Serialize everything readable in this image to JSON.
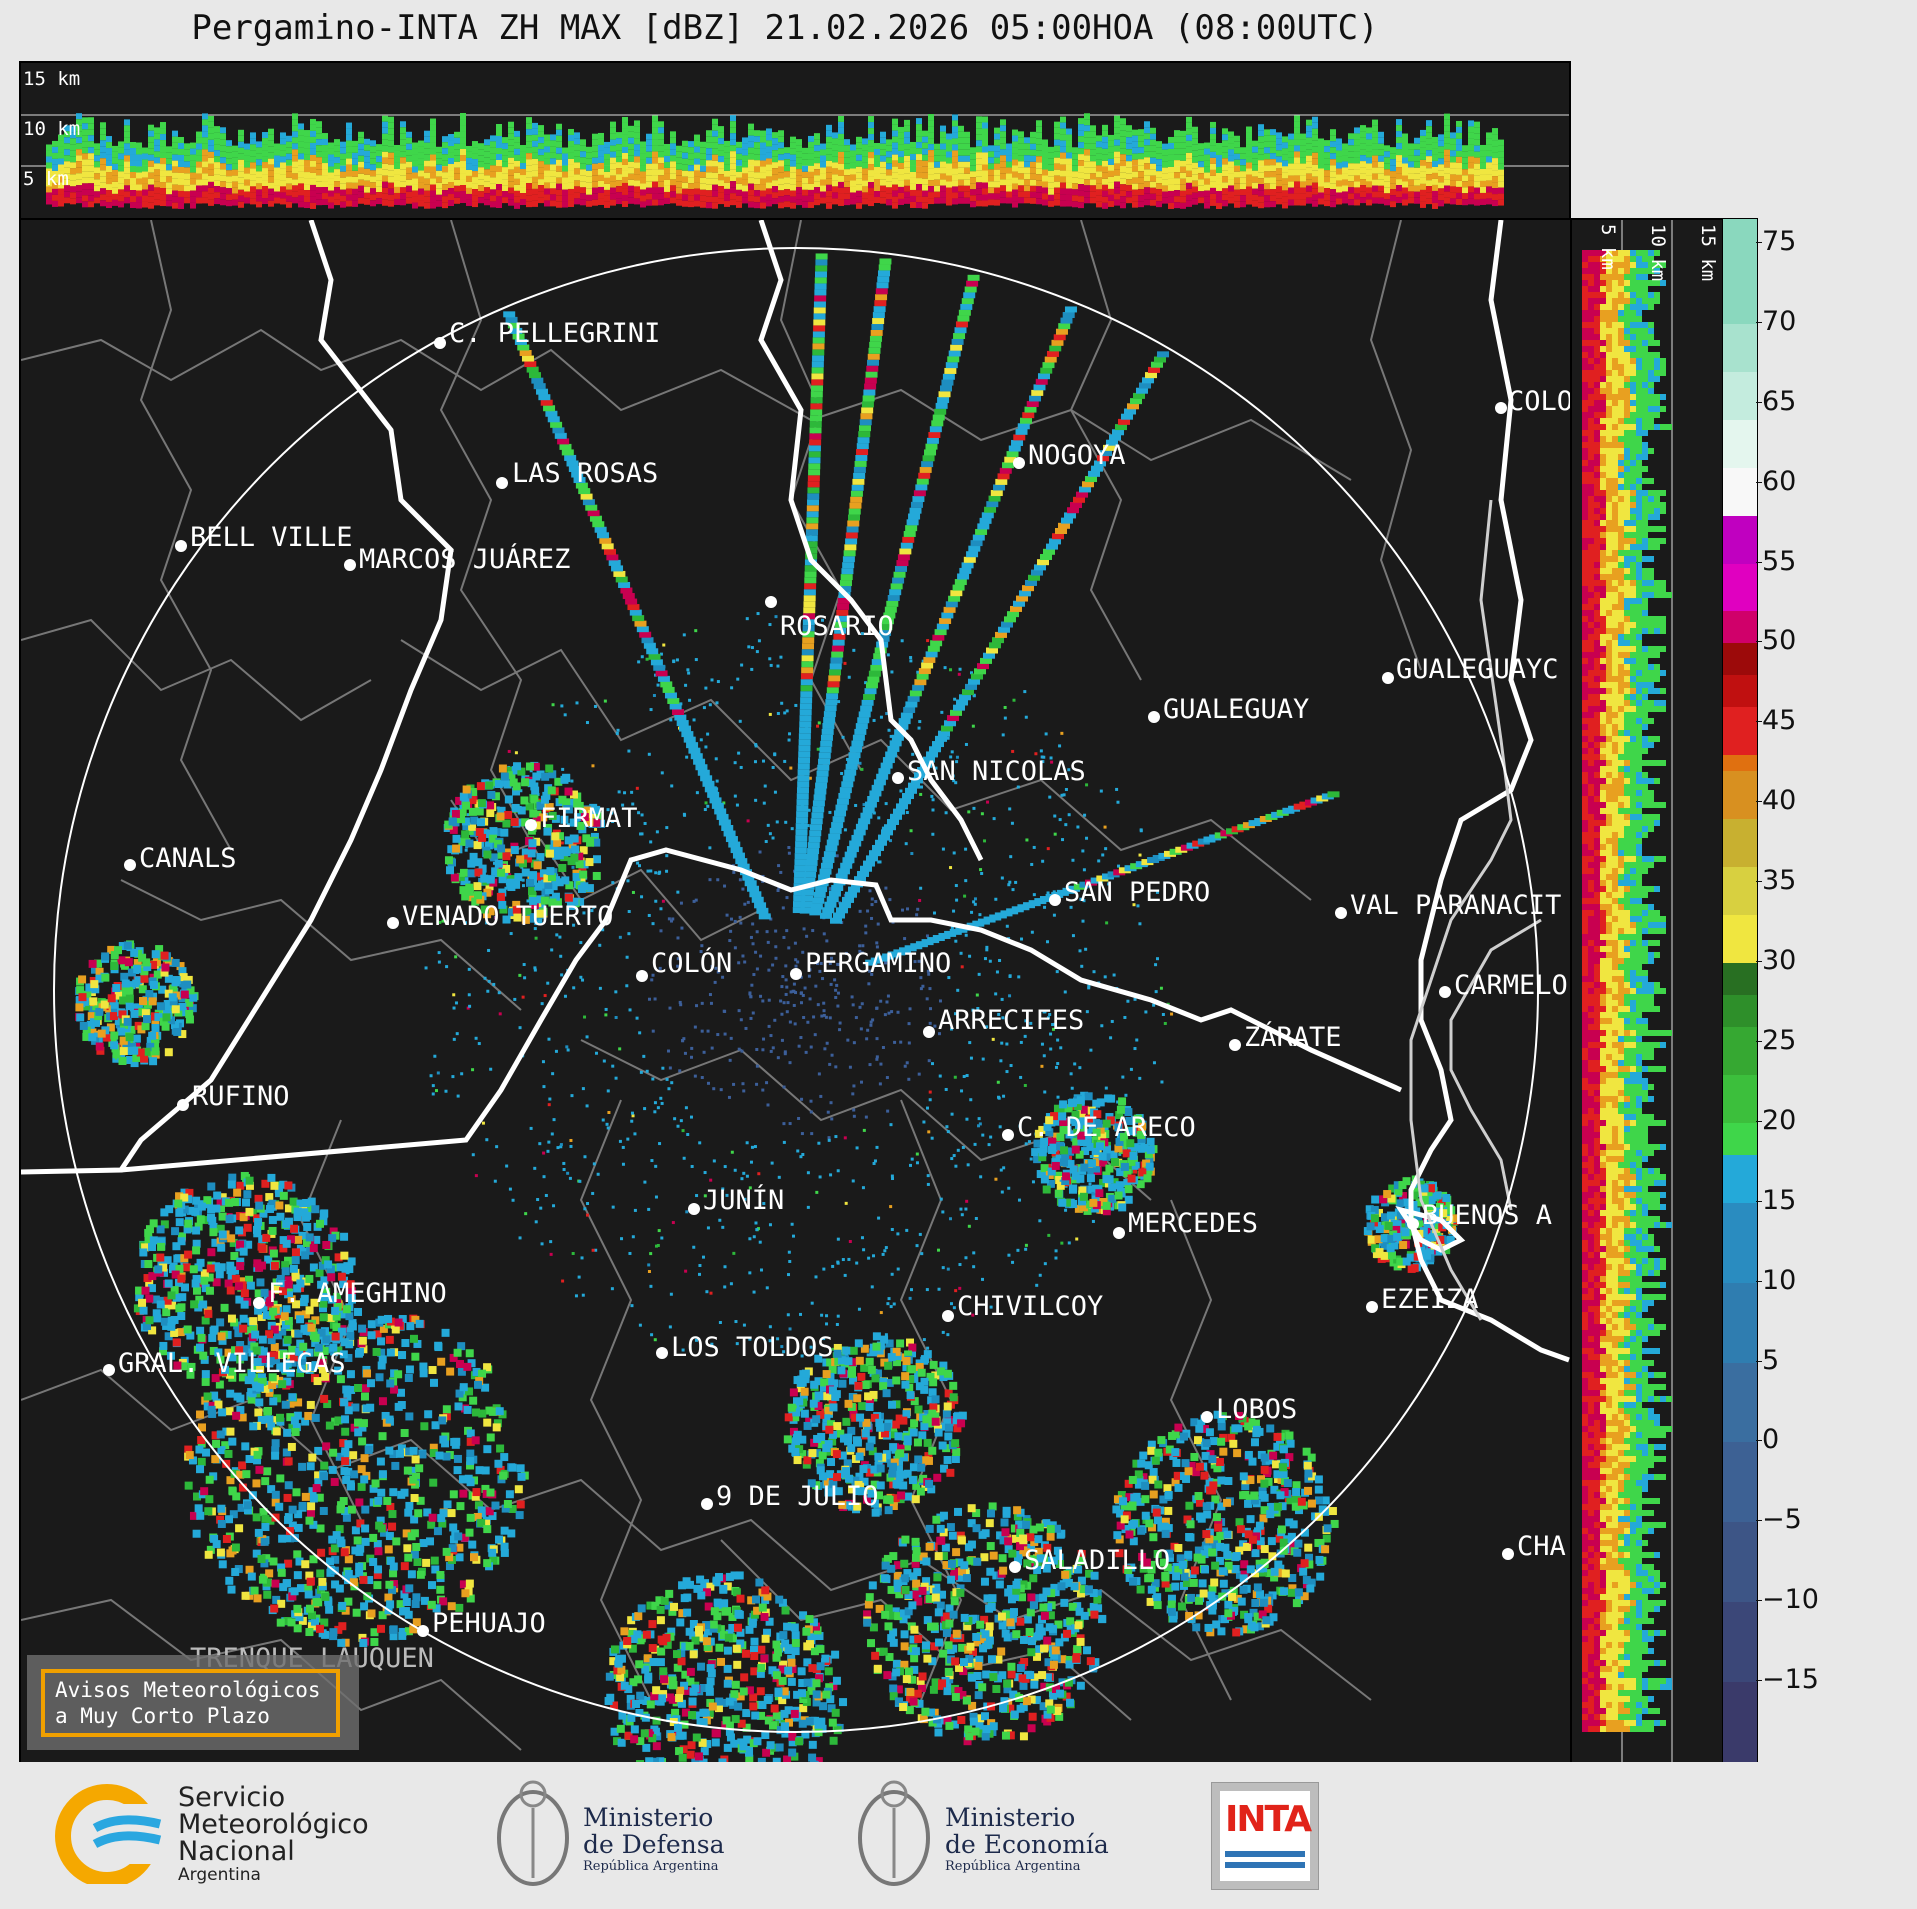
{
  "title": "Pergamino-INTA ZH MAX [dBZ] 21.02.2026 05:00HOA (08:00UTC)",
  "top_panel": {
    "height_labels": [
      "15 km",
      "10 km",
      "5 km"
    ]
  },
  "side_panel": {
    "height_labels": [
      "5 km",
      "10 km",
      "15 km"
    ]
  },
  "colorbar": {
    "ticks": [
      "75",
      "70",
      "65",
      "60",
      "55",
      "50",
      "45",
      "40",
      "35",
      "30",
      "25",
      "20",
      "15",
      "10",
      "5",
      "0",
      "−5",
      "−10",
      "−15"
    ],
    "min": -20,
    "max": 76.5
  },
  "cities": [
    {
      "name": "C. PELLEGRINI",
      "icon": "city-dot"
    },
    {
      "name": "LAS ROSAS",
      "icon": "city-dot"
    },
    {
      "name": "BELL VILLE",
      "icon": "city-dot"
    },
    {
      "name": "MARCOS JUÁREZ",
      "icon": "city-dot"
    },
    {
      "name": "NOGOYA",
      "icon": "city-dot"
    },
    {
      "name": "COLO",
      "icon": "city-dot"
    },
    {
      "name": "ROSARIO",
      "icon": "city-dot"
    },
    {
      "name": "GUALEGUAYC",
      "icon": "city-dot"
    },
    {
      "name": "GUALEGUAY",
      "icon": "city-dot"
    },
    {
      "name": "SAN NICOLAS",
      "icon": "city-dot"
    },
    {
      "name": "FIRMAT",
      "icon": "city-dot"
    },
    {
      "name": "CANALS",
      "icon": "city-dot"
    },
    {
      "name": "SAN PEDRO",
      "icon": "city-dot"
    },
    {
      "name": "VENADO TUERTO",
      "icon": "city-dot"
    },
    {
      "name": "VAL PARANACIT",
      "icon": "city-dot"
    },
    {
      "name": "COLÓN",
      "icon": "city-dot"
    },
    {
      "name": "PERGAMINO",
      "icon": "city-dot"
    },
    {
      "name": "CARMELO",
      "icon": "city-dot"
    },
    {
      "name": "ARRECIFES",
      "icon": "city-dot"
    },
    {
      "name": "ZÁRATE",
      "icon": "city-dot"
    },
    {
      "name": "RUFINO",
      "icon": "city-dot"
    },
    {
      "name": "C. DE ARECO",
      "icon": "city-dot"
    },
    {
      "name": "JUNÍN",
      "icon": "city-dot"
    },
    {
      "name": "BUENOS A",
      "icon": "city-dot"
    },
    {
      "name": "MERCEDES",
      "icon": "city-dot"
    },
    {
      "name": "EZEIZA",
      "icon": "city-dot"
    },
    {
      "name": "F. AMEGHINO",
      "icon": "city-dot"
    },
    {
      "name": "CHIVILCOY",
      "icon": "city-dot"
    },
    {
      "name": "GRAL. VILLEGAS",
      "icon": "city-dot"
    },
    {
      "name": "LOS TOLDOS",
      "icon": "city-dot"
    },
    {
      "name": "LOBOS",
      "icon": "city-dot"
    },
    {
      "name": "9 DE JULIO",
      "icon": "city-dot"
    },
    {
      "name": "CHA",
      "icon": "city-dot"
    },
    {
      "name": "SALADILLO",
      "icon": "city-dot"
    },
    {
      "name": "PEHUAJO",
      "icon": "city-dot"
    },
    {
      "name": "TRENQUE LAUQUEN",
      "icon": "city-dot"
    }
  ],
  "warning_box": {
    "line1": "Avisos Meteorológicos",
    "line2": "a Muy Corto Plazo"
  },
  "footer": {
    "smn": {
      "line1": "Servicio",
      "line2": "Meteorológico",
      "line3": "Nacional",
      "line4": "Argentina"
    },
    "defensa": {
      "line1": "Ministerio",
      "line2": "de Defensa",
      "line3": "República Argentina"
    },
    "economia": {
      "line1": "Ministerio",
      "line2": "de Economía",
      "line3": "República Argentina"
    },
    "inta": {
      "text": "INTA"
    }
  },
  "colors": {
    "background": "#1a1a1a",
    "range_ring": "#ffffff",
    "province_border": "#ffffff",
    "department_border": "#7a7a7a",
    "warning_border": "#f0a000"
  }
}
